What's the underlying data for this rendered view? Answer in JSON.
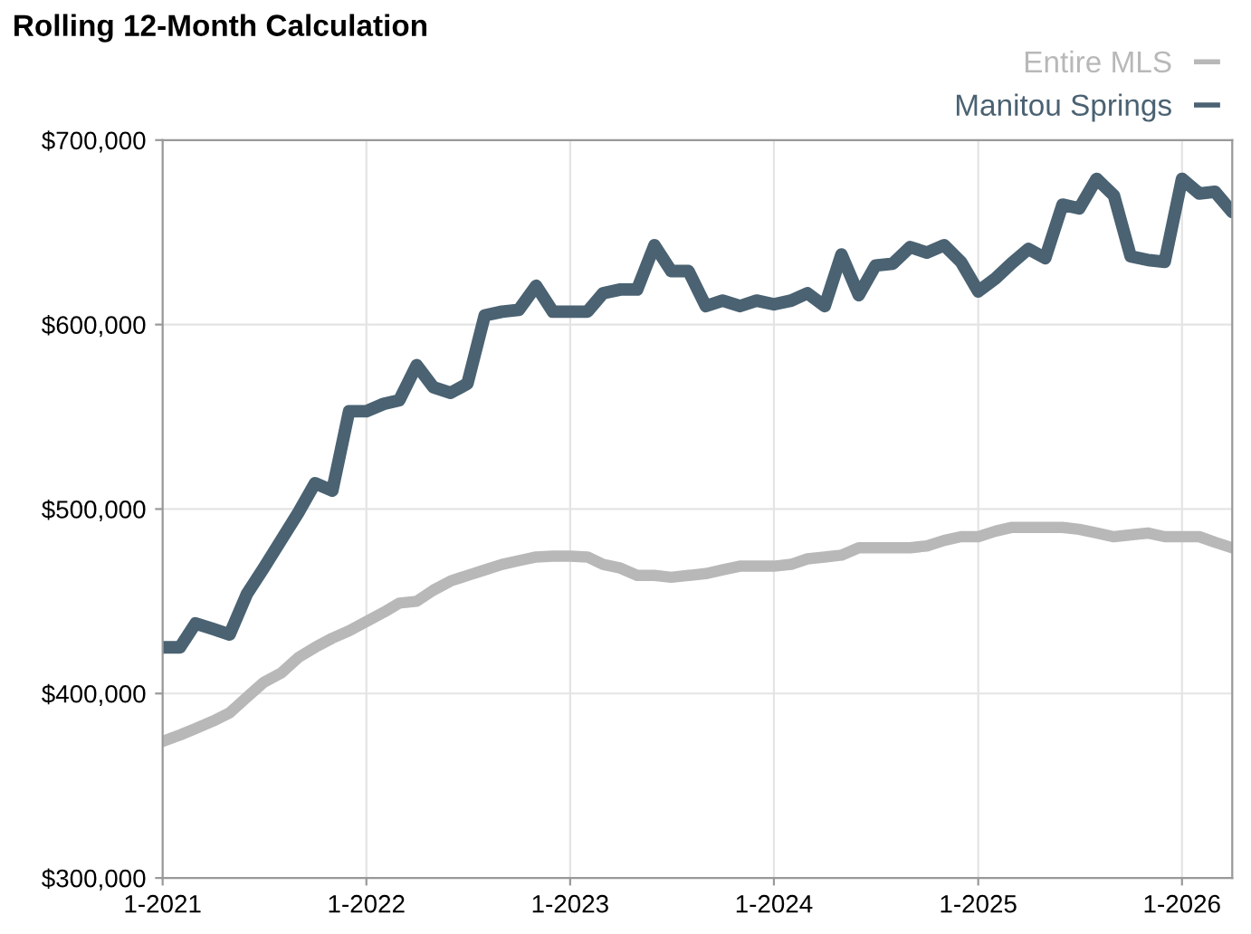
{
  "chart_data": {
    "type": "line",
    "title": "Rolling 12-Month Calculation",
    "x": [
      "2021-01",
      "2021-02",
      "2021-03",
      "2021-04",
      "2021-05",
      "2021-06",
      "2021-07",
      "2021-08",
      "2021-09",
      "2021-10",
      "2021-11",
      "2021-12",
      "2022-01",
      "2022-02",
      "2022-03",
      "2022-04",
      "2022-05",
      "2022-06",
      "2022-07",
      "2022-08",
      "2022-09",
      "2022-10",
      "2022-11",
      "2022-12",
      "2023-01",
      "2023-02",
      "2023-03",
      "2023-04",
      "2023-05",
      "2023-06",
      "2023-07",
      "2023-08",
      "2023-09",
      "2023-10",
      "2023-11",
      "2023-12",
      "2024-01",
      "2024-02",
      "2024-03",
      "2024-04",
      "2024-05",
      "2024-06",
      "2024-07",
      "2024-08",
      "2024-09",
      "2024-10",
      "2024-11",
      "2024-12",
      "2025-01",
      "2025-02",
      "2025-03",
      "2025-04",
      "2025-05",
      "2025-06",
      "2025-07",
      "2025-08",
      "2025-09",
      "2025-10",
      "2025-11",
      "2025-12",
      "2026-01",
      "2026-02",
      "2026-03",
      "2026-04"
    ],
    "series": [
      {
        "name": "Entire MLS",
        "color": "#b8b8b8",
        "values": [
          374000,
          377500,
          381000,
          385000,
          389500,
          398000,
          406000,
          411000,
          419500,
          425000,
          430000,
          434000,
          439000,
          444000,
          449000,
          450000,
          456000,
          461000,
          464000,
          467000,
          470000,
          472000,
          474000,
          474500,
          474500,
          474000,
          470000,
          468000,
          464000,
          464000,
          463000,
          464000,
          465000,
          467000,
          469000,
          469000,
          469000,
          470000,
          473000,
          474000,
          475000,
          479000,
          479000,
          479000,
          479000,
          480000,
          483000,
          485000,
          485000,
          488000,
          490000,
          490000,
          490000,
          490000,
          489000,
          487000,
          485000,
          486000,
          487000,
          485000,
          485000,
          485000,
          482000,
          479000
        ]
      },
      {
        "name": "Manitou Springs",
        "color": "#4a6272",
        "values": [
          425000,
          425000,
          438000,
          435000,
          432000,
          454000,
          468000,
          483000,
          498000,
          514000,
          510000,
          553000,
          553000,
          557000,
          559000,
          578000,
          566000,
          563000,
          568000,
          605000,
          607000,
          608000,
          621000,
          607000,
          607000,
          607000,
          617000,
          619000,
          619000,
          643000,
          629000,
          629000,
          610000,
          613000,
          610000,
          613000,
          611000,
          613000,
          617000,
          610000,
          638000,
          616000,
          632000,
          633000,
          642000,
          639000,
          643000,
          634000,
          618000,
          625000,
          633000,
          641000,
          636000,
          665000,
          663000,
          679000,
          670000,
          637000,
          635000,
          634000,
          679000,
          671000,
          672000,
          661000
        ]
      }
    ],
    "xlim": [
      "2021-01",
      "2026-04"
    ],
    "xticks": [
      {
        "value": "2021-01",
        "label": "1-2021"
      },
      {
        "value": "2022-01",
        "label": "1-2022"
      },
      {
        "value": "2023-01",
        "label": "1-2023"
      },
      {
        "value": "2024-01",
        "label": "1-2024"
      },
      {
        "value": "2025-01",
        "label": "1-2025"
      },
      {
        "value": "2026-01",
        "label": "1-2026"
      }
    ],
    "ylim": [
      300000,
      700000
    ],
    "yticks": [
      {
        "value": 300000,
        "label": "$300,000"
      },
      {
        "value": 400000,
        "label": "$400,000"
      },
      {
        "value": 500000,
        "label": "$500,000"
      },
      {
        "value": 600000,
        "label": "$600,000"
      },
      {
        "value": 700000,
        "label": "$700,000"
      }
    ],
    "grid": true,
    "legend": "top right",
    "line_style": "solid",
    "marker": "none"
  }
}
